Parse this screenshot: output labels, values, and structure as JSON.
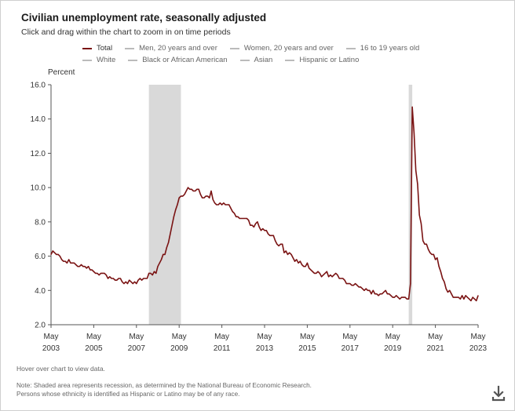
{
  "title": "Civilian unemployment rate, seasonally adjusted",
  "subtitle": "Click and drag within the chart to zoom in on time periods",
  "legend": {
    "row1": [
      "Total",
      "Men, 20 years and over",
      "Women, 20 years and over",
      "16 to 19 years old"
    ],
    "row2": [
      "White",
      "Black or African American",
      "Asian",
      "Hispanic or Latino"
    ]
  },
  "hover_note": "Hover over chart to view data.",
  "note_line1": "Note: Shaded area represents recession, as determined by the National Bureau of Economic Research.",
  "note_line2": "Persons whose ethnicity is identified as Hispanic or Latino may be of any race.",
  "colors": {
    "series": "#7a1313",
    "recession": "#d9d9d9",
    "legend_inactive": "#bbbbbb"
  },
  "icons": {
    "download": "download-icon"
  },
  "chart_data": {
    "type": "line",
    "ylabel": "Percent",
    "ylim": [
      2.0,
      16.0
    ],
    "yticks": [
      "2.0",
      "4.0",
      "6.0",
      "8.0",
      "10.0",
      "12.0",
      "14.0",
      "16.0"
    ],
    "xlim": [
      "2003-05",
      "2023-05"
    ],
    "xticks": [
      {
        "date": "2003-05",
        "month": "May",
        "year": "2003"
      },
      {
        "date": "2005-05",
        "month": "May",
        "year": "2005"
      },
      {
        "date": "2007-05",
        "month": "May",
        "year": "2007"
      },
      {
        "date": "2009-05",
        "month": "May",
        "year": "2009"
      },
      {
        "date": "2011-05",
        "month": "May",
        "year": "2011"
      },
      {
        "date": "2013-05",
        "month": "May",
        "year": "2013"
      },
      {
        "date": "2015-05",
        "month": "May",
        "year": "2015"
      },
      {
        "date": "2017-05",
        "month": "May",
        "year": "2017"
      },
      {
        "date": "2019-05",
        "month": "May",
        "year": "2019"
      },
      {
        "date": "2021-05",
        "month": "May",
        "year": "2021"
      },
      {
        "date": "2023-05",
        "month": "May",
        "year": "2023"
      }
    ],
    "grid": false,
    "recessions": [
      {
        "start": "2007-12",
        "end": "2009-06"
      },
      {
        "start": "2020-02",
        "end": "2020-04"
      }
    ],
    "series": [
      {
        "name": "Total",
        "points": [
          [
            "2003-05",
            6.1
          ],
          [
            "2003-06",
            6.3
          ],
          [
            "2003-07",
            6.2
          ],
          [
            "2003-08",
            6.1
          ],
          [
            "2003-09",
            6.1
          ],
          [
            "2003-10",
            6.0
          ],
          [
            "2003-11",
            5.8
          ],
          [
            "2003-12",
            5.7
          ],
          [
            "2004-01",
            5.7
          ],
          [
            "2004-02",
            5.6
          ],
          [
            "2004-03",
            5.8
          ],
          [
            "2004-04",
            5.6
          ],
          [
            "2004-05",
            5.6
          ],
          [
            "2004-06",
            5.6
          ],
          [
            "2004-07",
            5.5
          ],
          [
            "2004-08",
            5.4
          ],
          [
            "2004-09",
            5.4
          ],
          [
            "2004-10",
            5.5
          ],
          [
            "2004-11",
            5.4
          ],
          [
            "2004-12",
            5.4
          ],
          [
            "2005-01",
            5.3
          ],
          [
            "2005-02",
            5.4
          ],
          [
            "2005-03",
            5.2
          ],
          [
            "2005-04",
            5.2
          ],
          [
            "2005-05",
            5.1
          ],
          [
            "2005-06",
            5.0
          ],
          [
            "2005-07",
            5.0
          ],
          [
            "2005-08",
            4.9
          ],
          [
            "2005-09",
            5.0
          ],
          [
            "2005-10",
            5.0
          ],
          [
            "2005-11",
            5.0
          ],
          [
            "2005-12",
            4.9
          ],
          [
            "2006-01",
            4.7
          ],
          [
            "2006-02",
            4.8
          ],
          [
            "2006-03",
            4.7
          ],
          [
            "2006-04",
            4.7
          ],
          [
            "2006-05",
            4.6
          ],
          [
            "2006-06",
            4.6
          ],
          [
            "2006-07",
            4.7
          ],
          [
            "2006-08",
            4.7
          ],
          [
            "2006-09",
            4.5
          ],
          [
            "2006-10",
            4.4
          ],
          [
            "2006-11",
            4.5
          ],
          [
            "2006-12",
            4.4
          ],
          [
            "2007-01",
            4.6
          ],
          [
            "2007-02",
            4.5
          ],
          [
            "2007-03",
            4.4
          ],
          [
            "2007-04",
            4.5
          ],
          [
            "2007-05",
            4.4
          ],
          [
            "2007-06",
            4.6
          ],
          [
            "2007-07",
            4.7
          ],
          [
            "2007-08",
            4.6
          ],
          [
            "2007-09",
            4.7
          ],
          [
            "2007-10",
            4.7
          ],
          [
            "2007-11",
            4.7
          ],
          [
            "2007-12",
            5.0
          ],
          [
            "2008-01",
            5.0
          ],
          [
            "2008-02",
            4.9
          ],
          [
            "2008-03",
            5.1
          ],
          [
            "2008-04",
            5.0
          ],
          [
            "2008-05",
            5.4
          ],
          [
            "2008-06",
            5.6
          ],
          [
            "2008-07",
            5.8
          ],
          [
            "2008-08",
            6.1
          ],
          [
            "2008-09",
            6.1
          ],
          [
            "2008-10",
            6.5
          ],
          [
            "2008-11",
            6.8
          ],
          [
            "2008-12",
            7.3
          ],
          [
            "2009-01",
            7.8
          ],
          [
            "2009-02",
            8.3
          ],
          [
            "2009-03",
            8.7
          ],
          [
            "2009-04",
            9.0
          ],
          [
            "2009-05",
            9.4
          ],
          [
            "2009-06",
            9.5
          ],
          [
            "2009-07",
            9.5
          ],
          [
            "2009-08",
            9.6
          ],
          [
            "2009-09",
            9.8
          ],
          [
            "2009-10",
            10.0
          ],
          [
            "2009-11",
            9.9
          ],
          [
            "2009-12",
            9.9
          ],
          [
            "2010-01",
            9.8
          ],
          [
            "2010-02",
            9.8
          ],
          [
            "2010-03",
            9.9
          ],
          [
            "2010-04",
            9.9
          ],
          [
            "2010-05",
            9.6
          ],
          [
            "2010-06",
            9.4
          ],
          [
            "2010-07",
            9.4
          ],
          [
            "2010-08",
            9.5
          ],
          [
            "2010-09",
            9.5
          ],
          [
            "2010-10",
            9.4
          ],
          [
            "2010-11",
            9.8
          ],
          [
            "2010-12",
            9.3
          ],
          [
            "2011-01",
            9.1
          ],
          [
            "2011-02",
            9.0
          ],
          [
            "2011-03",
            9.0
          ],
          [
            "2011-04",
            9.1
          ],
          [
            "2011-05",
            9.0
          ],
          [
            "2011-06",
            9.1
          ],
          [
            "2011-07",
            9.0
          ],
          [
            "2011-08",
            9.0
          ],
          [
            "2011-09",
            9.0
          ],
          [
            "2011-10",
            8.8
          ],
          [
            "2011-11",
            8.6
          ],
          [
            "2011-12",
            8.5
          ],
          [
            "2012-01",
            8.3
          ],
          [
            "2012-02",
            8.3
          ],
          [
            "2012-03",
            8.2
          ],
          [
            "2012-04",
            8.2
          ],
          [
            "2012-05",
            8.2
          ],
          [
            "2012-06",
            8.2
          ],
          [
            "2012-07",
            8.2
          ],
          [
            "2012-08",
            8.1
          ],
          [
            "2012-09",
            7.8
          ],
          [
            "2012-10",
            7.8
          ],
          [
            "2012-11",
            7.7
          ],
          [
            "2012-12",
            7.9
          ],
          [
            "2013-01",
            8.0
          ],
          [
            "2013-02",
            7.7
          ],
          [
            "2013-03",
            7.5
          ],
          [
            "2013-04",
            7.6
          ],
          [
            "2013-05",
            7.5
          ],
          [
            "2013-06",
            7.5
          ],
          [
            "2013-07",
            7.3
          ],
          [
            "2013-08",
            7.2
          ],
          [
            "2013-09",
            7.2
          ],
          [
            "2013-10",
            7.2
          ],
          [
            "2013-11",
            6.9
          ],
          [
            "2013-12",
            6.7
          ],
          [
            "2014-01",
            6.6
          ],
          [
            "2014-02",
            6.7
          ],
          [
            "2014-03",
            6.7
          ],
          [
            "2014-04",
            6.2
          ],
          [
            "2014-05",
            6.3
          ],
          [
            "2014-06",
            6.1
          ],
          [
            "2014-07",
            6.2
          ],
          [
            "2014-08",
            6.1
          ],
          [
            "2014-09",
            5.9
          ],
          [
            "2014-10",
            5.7
          ],
          [
            "2014-11",
            5.8
          ],
          [
            "2014-12",
            5.6
          ],
          [
            "2015-01",
            5.7
          ],
          [
            "2015-02",
            5.5
          ],
          [
            "2015-03",
            5.4
          ],
          [
            "2015-04",
            5.4
          ],
          [
            "2015-05",
            5.6
          ],
          [
            "2015-06",
            5.3
          ],
          [
            "2015-07",
            5.2
          ],
          [
            "2015-08",
            5.1
          ],
          [
            "2015-09",
            5.0
          ],
          [
            "2015-10",
            5.0
          ],
          [
            "2015-11",
            5.1
          ],
          [
            "2015-12",
            5.0
          ],
          [
            "2016-01",
            4.8
          ],
          [
            "2016-02",
            4.9
          ],
          [
            "2016-03",
            5.0
          ],
          [
            "2016-04",
            5.1
          ],
          [
            "2016-05",
            4.8
          ],
          [
            "2016-06",
            4.9
          ],
          [
            "2016-07",
            4.8
          ],
          [
            "2016-08",
            4.9
          ],
          [
            "2016-09",
            5.0
          ],
          [
            "2016-10",
            4.9
          ],
          [
            "2016-11",
            4.7
          ],
          [
            "2016-12",
            4.7
          ],
          [
            "2017-01",
            4.7
          ],
          [
            "2017-02",
            4.6
          ],
          [
            "2017-03",
            4.4
          ],
          [
            "2017-04",
            4.4
          ],
          [
            "2017-05",
            4.4
          ],
          [
            "2017-06",
            4.3
          ],
          [
            "2017-07",
            4.3
          ],
          [
            "2017-08",
            4.4
          ],
          [
            "2017-09",
            4.3
          ],
          [
            "2017-10",
            4.2
          ],
          [
            "2017-11",
            4.2
          ],
          [
            "2017-12",
            4.1
          ],
          [
            "2018-01",
            4.0
          ],
          [
            "2018-02",
            4.1
          ],
          [
            "2018-03",
            4.0
          ],
          [
            "2018-04",
            4.0
          ],
          [
            "2018-05",
            3.8
          ],
          [
            "2018-06",
            4.0
          ],
          [
            "2018-07",
            3.8
          ],
          [
            "2018-08",
            3.8
          ],
          [
            "2018-09",
            3.7
          ],
          [
            "2018-10",
            3.8
          ],
          [
            "2018-11",
            3.8
          ],
          [
            "2018-12",
            3.9
          ],
          [
            "2019-01",
            4.0
          ],
          [
            "2019-02",
            3.8
          ],
          [
            "2019-03",
            3.8
          ],
          [
            "2019-04",
            3.7
          ],
          [
            "2019-05",
            3.6
          ],
          [
            "2019-06",
            3.6
          ],
          [
            "2019-07",
            3.7
          ],
          [
            "2019-08",
            3.6
          ],
          [
            "2019-09",
            3.5
          ],
          [
            "2019-10",
            3.6
          ],
          [
            "2019-11",
            3.6
          ],
          [
            "2019-12",
            3.6
          ],
          [
            "2020-01",
            3.5
          ],
          [
            "2020-02",
            3.5
          ],
          [
            "2020-03",
            4.4
          ],
          [
            "2020-04",
            14.7
          ],
          [
            "2020-05",
            13.2
          ],
          [
            "2020-06",
            11.0
          ],
          [
            "2020-07",
            10.2
          ],
          [
            "2020-08",
            8.4
          ],
          [
            "2020-09",
            7.9
          ],
          [
            "2020-10",
            6.9
          ],
          [
            "2020-11",
            6.7
          ],
          [
            "2020-12",
            6.7
          ],
          [
            "2021-01",
            6.4
          ],
          [
            "2021-02",
            6.2
          ],
          [
            "2021-03",
            6.1
          ],
          [
            "2021-04",
            6.1
          ],
          [
            "2021-05",
            5.8
          ],
          [
            "2021-06",
            5.9
          ],
          [
            "2021-07",
            5.4
          ],
          [
            "2021-08",
            5.1
          ],
          [
            "2021-09",
            4.7
          ],
          [
            "2021-10",
            4.5
          ],
          [
            "2021-11",
            4.1
          ],
          [
            "2021-12",
            3.9
          ],
          [
            "2022-01",
            4.0
          ],
          [
            "2022-02",
            3.8
          ],
          [
            "2022-03",
            3.6
          ],
          [
            "2022-04",
            3.6
          ],
          [
            "2022-05",
            3.6
          ],
          [
            "2022-06",
            3.6
          ],
          [
            "2022-07",
            3.5
          ],
          [
            "2022-08",
            3.7
          ],
          [
            "2022-09",
            3.5
          ],
          [
            "2022-10",
            3.7
          ],
          [
            "2022-11",
            3.6
          ],
          [
            "2022-12",
            3.5
          ],
          [
            "2023-01",
            3.4
          ],
          [
            "2023-02",
            3.6
          ],
          [
            "2023-03",
            3.5
          ],
          [
            "2023-04",
            3.4
          ],
          [
            "2023-05",
            3.7
          ]
        ]
      }
    ]
  }
}
